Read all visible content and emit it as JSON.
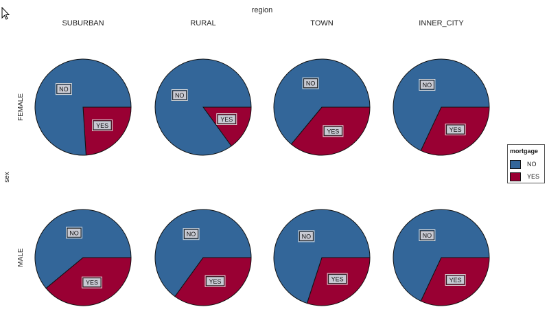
{
  "chart_data": {
    "type": "pie",
    "facet_col_label": "region",
    "facet_row_label": "sex",
    "columns": [
      "SUBURBAN",
      "RURAL",
      "TOWN",
      "INNER_CITY"
    ],
    "rows": [
      "FEMALE",
      "MALE"
    ],
    "legend": {
      "title": "mortgage",
      "placement": "right",
      "entries": [
        {
          "label": "NO",
          "color": "#336699"
        },
        {
          "label": "YES",
          "color": "#990033"
        }
      ]
    },
    "categories": [
      "NO",
      "YES"
    ],
    "panels": [
      {
        "row": "FEMALE",
        "column": "SUBURBAN",
        "values": [
          76,
          24
        ]
      },
      {
        "row": "FEMALE",
        "column": "RURAL",
        "values": [
          85,
          15
        ]
      },
      {
        "row": "FEMALE",
        "column": "TOWN",
        "values": [
          64,
          36
        ]
      },
      {
        "row": "FEMALE",
        "column": "INNER_CITY",
        "values": [
          68,
          32
        ]
      },
      {
        "row": "MALE",
        "column": "SUBURBAN",
        "values": [
          61,
          39
        ]
      },
      {
        "row": "MALE",
        "column": "RURAL",
        "values": [
          65,
          35
        ]
      },
      {
        "row": "MALE",
        "column": "TOWN",
        "values": [
          70,
          30
        ]
      },
      {
        "row": "MALE",
        "column": "INNER_CITY",
        "values": [
          68,
          32
        ]
      }
    ]
  }
}
